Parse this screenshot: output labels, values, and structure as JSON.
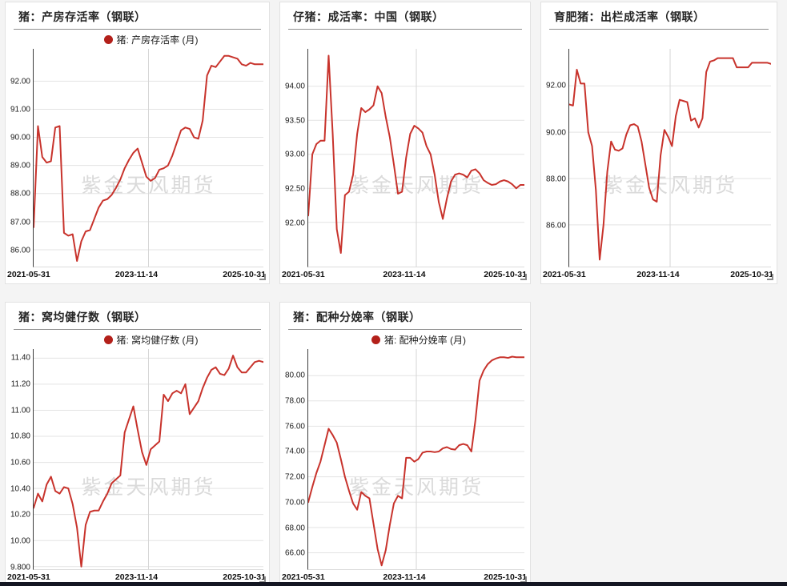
{
  "watermark": "紫金天风期货",
  "colors": {
    "line": "#c8332c",
    "legend_dot": "#b3201a",
    "grid": "#e3e3e3",
    "mid_grid": "#d6d6d6",
    "axis": "#3c3c3c",
    "bottom_bar": "#141622",
    "page_background": "#f4f4f4"
  },
  "chart_data": [
    {
      "type": "line",
      "title": "猪：产房存活率（钢联）",
      "legend": "猪: 产房存活率 (月)",
      "x_ticks": [
        "2021-05-31",
        "2023-11-14",
        "2025-10-31"
      ],
      "y_tick_labels": [
        "92.00",
        "91.00",
        "90.00",
        "89.00",
        "88.00",
        "87.00",
        "86.00"
      ],
      "y_ticks": [
        92,
        91,
        90,
        89,
        88,
        87,
        86
      ],
      "ylim": [
        85.4,
        93.15
      ],
      "values": [
        86.8,
        90.4,
        89.3,
        89.1,
        89.15,
        90.35,
        90.4,
        86.6,
        86.5,
        86.55,
        85.6,
        86.3,
        86.65,
        86.7,
        87.1,
        87.5,
        87.75,
        87.8,
        87.95,
        88.2,
        88.5,
        88.9,
        89.2,
        89.45,
        89.6,
        89.1,
        88.6,
        88.45,
        88.55,
        88.85,
        88.9,
        89.0,
        89.35,
        89.8,
        90.25,
        90.35,
        90.3,
        90.0,
        89.95,
        90.6,
        92.2,
        92.55,
        92.5,
        92.7,
        92.9,
        92.9,
        92.85,
        92.8,
        92.6,
        92.55,
        92.65,
        92.6,
        92.6,
        92.6
      ]
    },
    {
      "type": "line",
      "title": "仔猪：成活率：中国（钢联）",
      "legend": "",
      "x_ticks": [
        "2021-05-31",
        "2023-11-14",
        "2025-10-31"
      ],
      "y_tick_labels": [
        "94.00",
        "93.50",
        "93.00",
        "92.50",
        "92.00"
      ],
      "y_ticks": [
        94,
        93.5,
        93,
        92.5,
        92
      ],
      "ylim": [
        91.35,
        94.55
      ],
      "values": [
        92.1,
        93.0,
        93.15,
        93.2,
        93.2,
        94.45,
        93.3,
        91.9,
        91.55,
        92.4,
        92.45,
        92.7,
        93.3,
        93.68,
        93.62,
        93.66,
        93.72,
        94.0,
        93.9,
        93.55,
        93.25,
        92.85,
        92.42,
        92.45,
        92.95,
        93.3,
        93.42,
        93.38,
        93.32,
        93.12,
        93.0,
        92.7,
        92.3,
        92.05,
        92.35,
        92.6,
        92.7,
        92.72,
        92.7,
        92.66,
        92.76,
        92.78,
        92.72,
        92.62,
        92.58,
        92.55,
        92.56,
        92.6,
        92.62,
        92.6,
        92.56,
        92.5,
        92.55,
        92.55
      ]
    },
    {
      "type": "line",
      "title": "育肥猪：出栏成活率（钢联）",
      "legend": "",
      "x_ticks": [
        "2021-05-31",
        "2023-11-14",
        "2025-10-31"
      ],
      "y_tick_labels": [
        "92.00",
        "90.00",
        "88.00",
        "86.00"
      ],
      "y_ticks": [
        92,
        90,
        88,
        86
      ],
      "ylim": [
        84.2,
        93.6
      ],
      "values": [
        91.2,
        91.15,
        92.7,
        92.1,
        92.1,
        90.0,
        89.4,
        87.5,
        84.5,
        86.0,
        88.3,
        89.6,
        89.25,
        89.2,
        89.3,
        89.9,
        90.3,
        90.35,
        90.25,
        89.6,
        88.6,
        87.6,
        87.1,
        87.0,
        89.0,
        90.1,
        89.8,
        89.4,
        90.7,
        91.4,
        91.35,
        91.3,
        90.5,
        90.6,
        90.2,
        90.6,
        92.6,
        93.05,
        93.1,
        93.2,
        93.2,
        93.2,
        93.2,
        93.2,
        92.8,
        92.8,
        92.8,
        92.8,
        93.0,
        93.0,
        93.0,
        93.0,
        93.0,
        92.95
      ]
    },
    {
      "type": "line",
      "title": "猪：窝均健仔数（钢联）",
      "legend": "猪: 窝均健仔数 (月)",
      "x_ticks": [
        "2021-05-31",
        "2023-11-14",
        "2025-10-31"
      ],
      "y_tick_labels": [
        "11.40",
        "11.20",
        "11.00",
        "10.80",
        "10.60",
        "10.40",
        "10.20",
        "10.00",
        "9.800"
      ],
      "y_ticks": [
        11.4,
        11.2,
        11.0,
        10.8,
        10.6,
        10.4,
        10.2,
        10.0,
        9.8
      ],
      "ylim": [
        9.78,
        11.47
      ],
      "values": [
        10.25,
        10.36,
        10.3,
        10.43,
        10.49,
        10.38,
        10.36,
        10.41,
        10.4,
        10.28,
        10.1,
        9.8,
        10.12,
        10.22,
        10.23,
        10.23,
        10.3,
        10.36,
        10.44,
        10.47,
        10.5,
        10.83,
        10.93,
        11.03,
        10.85,
        10.68,
        10.58,
        10.7,
        10.73,
        10.76,
        11.12,
        11.07,
        11.13,
        11.15,
        11.13,
        11.2,
        10.97,
        11.02,
        11.07,
        11.17,
        11.25,
        11.31,
        11.33,
        11.28,
        11.27,
        11.32,
        11.42,
        11.33,
        11.29,
        11.29,
        11.33,
        11.37,
        11.38,
        11.37
      ]
    },
    {
      "type": "line",
      "title": "猪：配种分娩率（钢联）",
      "legend": "猪: 配种分娩率 (月)",
      "x_ticks": [
        "2021-05-31",
        "2023-11-14",
        "2025-10-31"
      ],
      "y_tick_labels": [
        "80.00",
        "78.00",
        "76.00",
        "74.00",
        "72.00",
        "70.00",
        "68.00",
        "66.00"
      ],
      "y_ticks": [
        80,
        78,
        76,
        74,
        72,
        70,
        68,
        66
      ],
      "ylim": [
        64.7,
        82.1
      ],
      "values": [
        70.0,
        71.2,
        72.3,
        73.2,
        74.5,
        75.8,
        75.3,
        74.7,
        73.4,
        72.0,
        70.9,
        69.9,
        69.4,
        70.8,
        70.5,
        70.3,
        68.3,
        66.3,
        65.0,
        66.2,
        68.2,
        69.9,
        70.5,
        70.3,
        73.5,
        73.5,
        73.2,
        73.4,
        73.9,
        74.0,
        74.0,
        73.95,
        74.0,
        74.25,
        74.35,
        74.2,
        74.15,
        74.5,
        74.6,
        74.5,
        74.0,
        76.5,
        79.6,
        80.4,
        80.9,
        81.2,
        81.35,
        81.45,
        81.45,
        81.4,
        81.5,
        81.45,
        81.45,
        81.45
      ]
    }
  ]
}
